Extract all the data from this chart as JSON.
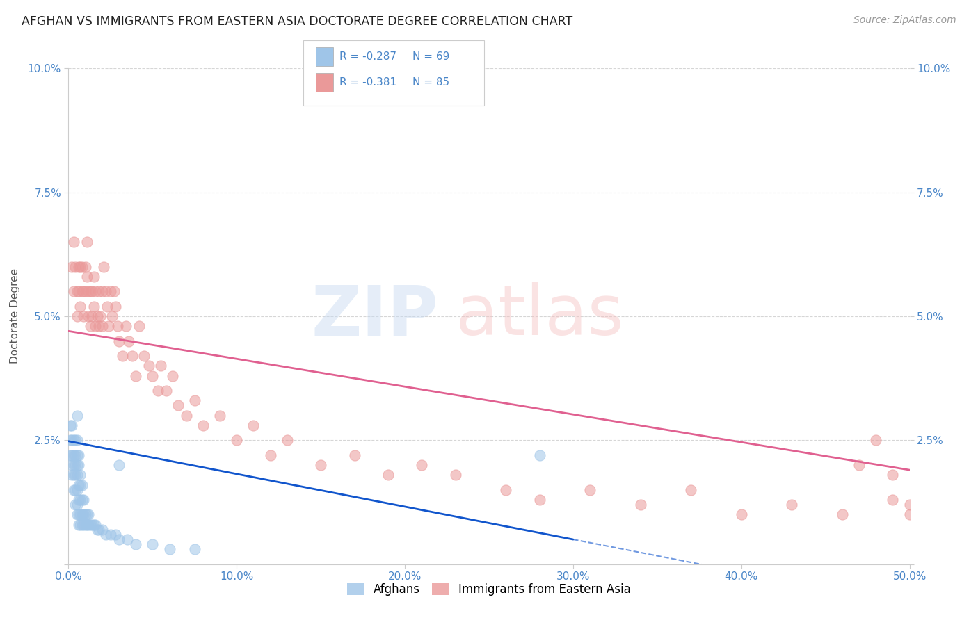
{
  "title": "AFGHAN VS IMMIGRANTS FROM EASTERN ASIA DOCTORATE DEGREE CORRELATION CHART",
  "source": "Source: ZipAtlas.com",
  "ylabel": "Doctorate Degree",
  "xlim": [
    0.0,
    0.5
  ],
  "ylim": [
    0.0,
    0.1
  ],
  "xticks": [
    0.0,
    0.1,
    0.2,
    0.3,
    0.4,
    0.5
  ],
  "xticklabels": [
    "0.0%",
    "10.0%",
    "20.0%",
    "30.0%",
    "40.0%",
    "50.0%"
  ],
  "yticks": [
    0.0,
    0.025,
    0.05,
    0.075,
    0.1
  ],
  "yticklabels": [
    "",
    "2.5%",
    "5.0%",
    "7.5%",
    "10.0%"
  ],
  "legend_r_blue": "-0.287",
  "legend_n_blue": "69",
  "legend_r_pink": "-0.381",
  "legend_n_pink": "85",
  "legend_label_blue": "Afghans",
  "legend_label_pink": "Immigrants from Eastern Asia",
  "color_blue": "#9fc5e8",
  "color_pink": "#ea9999",
  "color_line_blue": "#1155cc",
  "color_line_pink": "#e06090",
  "color_text_blue": "#4a86c8",
  "background_color": "#ffffff",
  "grid_color": "#cccccc",
  "blue_x": [
    0.001,
    0.001,
    0.001,
    0.002,
    0.002,
    0.002,
    0.002,
    0.002,
    0.003,
    0.003,
    0.003,
    0.003,
    0.003,
    0.004,
    0.004,
    0.004,
    0.004,
    0.004,
    0.004,
    0.005,
    0.005,
    0.005,
    0.005,
    0.005,
    0.005,
    0.005,
    0.005,
    0.006,
    0.006,
    0.006,
    0.006,
    0.006,
    0.006,
    0.007,
    0.007,
    0.007,
    0.007,
    0.007,
    0.008,
    0.008,
    0.008,
    0.008,
    0.009,
    0.009,
    0.009,
    0.01,
    0.01,
    0.011,
    0.011,
    0.012,
    0.012,
    0.013,
    0.014,
    0.015,
    0.016,
    0.017,
    0.018,
    0.02,
    0.022,
    0.025,
    0.028,
    0.03,
    0.035,
    0.04,
    0.05,
    0.06,
    0.075,
    0.28,
    0.03
  ],
  "blue_y": [
    0.022,
    0.025,
    0.028,
    0.018,
    0.02,
    0.022,
    0.025,
    0.028,
    0.015,
    0.018,
    0.02,
    0.022,
    0.025,
    0.012,
    0.015,
    0.018,
    0.02,
    0.022,
    0.025,
    0.01,
    0.012,
    0.015,
    0.018,
    0.02,
    0.022,
    0.025,
    0.03,
    0.008,
    0.01,
    0.013,
    0.016,
    0.02,
    0.022,
    0.008,
    0.01,
    0.013,
    0.016,
    0.018,
    0.008,
    0.01,
    0.013,
    0.016,
    0.008,
    0.01,
    0.013,
    0.008,
    0.01,
    0.008,
    0.01,
    0.008,
    0.01,
    0.008,
    0.008,
    0.008,
    0.008,
    0.007,
    0.007,
    0.007,
    0.006,
    0.006,
    0.006,
    0.005,
    0.005,
    0.004,
    0.004,
    0.003,
    0.003,
    0.022,
    0.02
  ],
  "pink_x": [
    0.002,
    0.003,
    0.003,
    0.004,
    0.005,
    0.005,
    0.006,
    0.006,
    0.007,
    0.007,
    0.008,
    0.008,
    0.009,
    0.009,
    0.01,
    0.01,
    0.011,
    0.011,
    0.012,
    0.012,
    0.013,
    0.013,
    0.014,
    0.014,
    0.015,
    0.015,
    0.016,
    0.016,
    0.017,
    0.018,
    0.018,
    0.019,
    0.02,
    0.02,
    0.021,
    0.022,
    0.023,
    0.024,
    0.025,
    0.026,
    0.027,
    0.028,
    0.029,
    0.03,
    0.032,
    0.034,
    0.036,
    0.038,
    0.04,
    0.042,
    0.045,
    0.048,
    0.05,
    0.053,
    0.055,
    0.058,
    0.062,
    0.065,
    0.07,
    0.075,
    0.08,
    0.09,
    0.1,
    0.11,
    0.12,
    0.13,
    0.15,
    0.17,
    0.19,
    0.21,
    0.23,
    0.26,
    0.28,
    0.31,
    0.34,
    0.37,
    0.4,
    0.43,
    0.46,
    0.49,
    0.5,
    0.5,
    0.49,
    0.48,
    0.47
  ],
  "pink_y": [
    0.06,
    0.065,
    0.055,
    0.06,
    0.055,
    0.05,
    0.06,
    0.055,
    0.06,
    0.052,
    0.06,
    0.055,
    0.055,
    0.05,
    0.06,
    0.055,
    0.065,
    0.058,
    0.055,
    0.05,
    0.055,
    0.048,
    0.055,
    0.05,
    0.058,
    0.052,
    0.055,
    0.048,
    0.05,
    0.055,
    0.048,
    0.05,
    0.055,
    0.048,
    0.06,
    0.055,
    0.052,
    0.048,
    0.055,
    0.05,
    0.055,
    0.052,
    0.048,
    0.045,
    0.042,
    0.048,
    0.045,
    0.042,
    0.038,
    0.048,
    0.042,
    0.04,
    0.038,
    0.035,
    0.04,
    0.035,
    0.038,
    0.032,
    0.03,
    0.033,
    0.028,
    0.03,
    0.025,
    0.028,
    0.022,
    0.025,
    0.02,
    0.022,
    0.018,
    0.02,
    0.018,
    0.015,
    0.013,
    0.015,
    0.012,
    0.015,
    0.01,
    0.012,
    0.01,
    0.013,
    0.01,
    0.012,
    0.018,
    0.025,
    0.02
  ],
  "blue_line_x0": 0.0,
  "blue_line_x1": 0.3,
  "blue_line_y0": 0.0248,
  "blue_line_y1": 0.005,
  "pink_line_x0": 0.0,
  "pink_line_x1": 0.5,
  "pink_line_y0": 0.047,
  "pink_line_y1": 0.019
}
